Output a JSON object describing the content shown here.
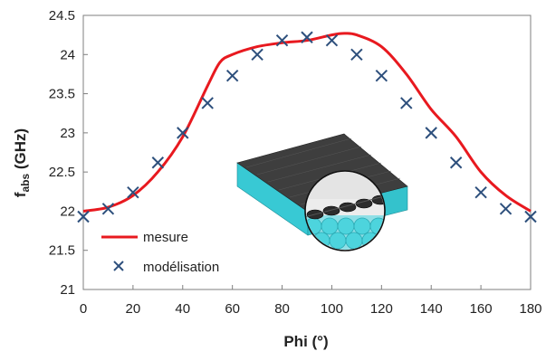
{
  "chart_data": {
    "type": "line",
    "title": "",
    "xlabel": "Phi (°)",
    "ylabel_main": "f",
    "ylabel_sub": "abs",
    "ylabel_unit": " (GHz)",
    "xlim": [
      0,
      180
    ],
    "ylim": [
      21,
      24.5
    ],
    "xticks": [
      "0",
      "20",
      "40",
      "60",
      "80",
      "100",
      "120",
      "140",
      "160",
      "180"
    ],
    "yticks": [
      "21",
      "21.5",
      "22",
      "22.5",
      "23",
      "23.5",
      "24",
      "24.5"
    ],
    "grid": false,
    "legend_position": "bottom-left",
    "series": [
      {
        "name": "mesure",
        "style": "line",
        "color": "#e8191f",
        "x": [
          0,
          10,
          20,
          30,
          40,
          50,
          55,
          60,
          70,
          80,
          90,
          100,
          105,
          110,
          120,
          130,
          140,
          150,
          160,
          170,
          180
        ],
        "y": [
          22.0,
          22.05,
          22.2,
          22.5,
          22.95,
          23.6,
          23.9,
          24.0,
          24.1,
          24.15,
          24.18,
          24.25,
          24.27,
          24.25,
          24.1,
          23.75,
          23.3,
          22.95,
          22.5,
          22.2,
          22.0
        ]
      },
      {
        "name": "modélisation",
        "style": "marker-x",
        "color": "#2d4f7c",
        "x": [
          0,
          10,
          20,
          30,
          40,
          50,
          60,
          70,
          80,
          90,
          100,
          110,
          120,
          130,
          140,
          150,
          160,
          170,
          180
        ],
        "y": [
          21.93,
          22.03,
          22.24,
          22.62,
          23.0,
          23.38,
          23.73,
          24.0,
          24.18,
          24.22,
          24.18,
          24.0,
          23.73,
          23.38,
          23.0,
          22.62,
          22.24,
          22.03,
          21.93
        ]
      }
    ],
    "inset": "material-sample-illustration",
    "inset_colors": {
      "top": "#3e3e3e",
      "side": "#38c9d4",
      "lens": "#eeeeee"
    }
  }
}
